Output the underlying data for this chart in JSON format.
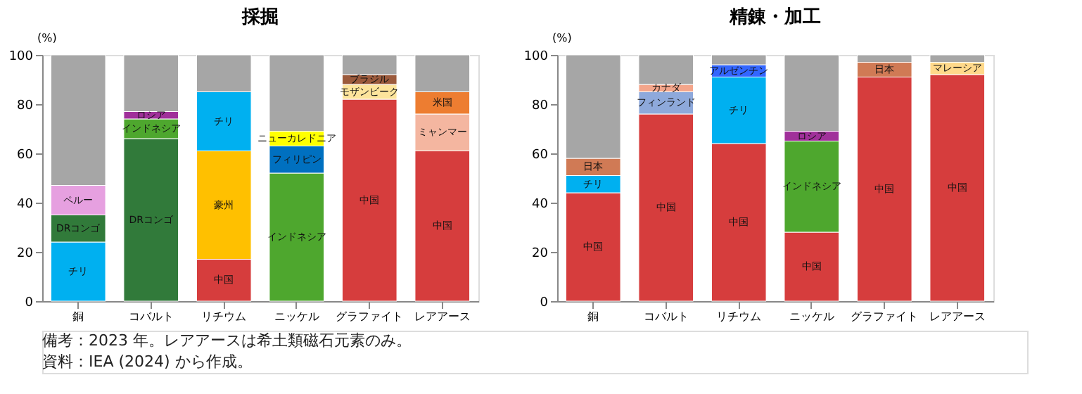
{
  "chart_data": [
    {
      "type": "bar",
      "stacked": true,
      "title": "採掘",
      "ylabel": "(%)",
      "categories": [
        "銅",
        "コバルト",
        "リチウム",
        "ニッケル",
        "グラファイト",
        "レアアース"
      ],
      "ylim": [
        0,
        100
      ],
      "yticks": [
        0,
        20,
        40,
        60,
        80,
        100
      ],
      "grid": false,
      "legend": false,
      "series": [
        {
          "name": "中国",
          "color": "#d63d3d",
          "values": [
            null,
            null,
            17,
            null,
            82,
            61
          ]
        },
        {
          "name": "豪州",
          "color": "#ffc000",
          "values": [
            null,
            null,
            44,
            null,
            null,
            null
          ]
        },
        {
          "name": "チリ",
          "color": "#00b0f0",
          "values": [
            24,
            null,
            24,
            null,
            null,
            null
          ]
        },
        {
          "name": "DRコンゴ",
          "color": "#317a3a",
          "values": [
            11,
            66,
            null,
            null,
            null,
            null
          ]
        },
        {
          "name": "ペルー",
          "color": "#e6a0e0",
          "values": [
            12,
            null,
            null,
            null,
            null,
            null
          ]
        },
        {
          "name": "インドネシア",
          "color": "#4ea72e",
          "values": [
            null,
            8,
            null,
            52,
            null,
            null
          ]
        },
        {
          "name": "ロシア",
          "color": "#a0309a",
          "values": [
            null,
            3,
            null,
            null,
            null,
            null
          ]
        },
        {
          "name": "フィリピン",
          "color": "#0070c0",
          "values": [
            null,
            null,
            null,
            11,
            null,
            null
          ]
        },
        {
          "name": "ニューカレドニア",
          "color": "#ffff00",
          "values": [
            null,
            null,
            null,
            6,
            null,
            null
          ]
        },
        {
          "name": "モザンビーク",
          "color": "#fde49c",
          "values": [
            null,
            null,
            null,
            null,
            6,
            null
          ]
        },
        {
          "name": "ブラジル",
          "color": "#9b5a3c",
          "values": [
            null,
            null,
            null,
            null,
            4,
            null
          ]
        },
        {
          "name": "ミャンマー",
          "color": "#f4b6a0",
          "values": [
            null,
            null,
            null,
            null,
            null,
            15
          ]
        },
        {
          "name": "米国",
          "color": "#ed7d31",
          "values": [
            null,
            null,
            null,
            null,
            null,
            9
          ]
        },
        {
          "color": "#a6a6a6",
          "values": [
            53,
            23,
            15,
            31,
            8,
            15
          ]
        }
      ],
      "annotations": [
        "備考：2023 年。レアアースは希土類磁石元素のみ。",
        "資料：IEA (2024) から作成。"
      ]
    },
    {
      "type": "bar",
      "stacked": true,
      "title": "精錬・加工",
      "ylabel": "(%)",
      "categories": [
        "銅",
        "コバルト",
        "リチウム",
        "ニッケル",
        "グラファイト",
        "レアアース"
      ],
      "ylim": [
        0,
        100
      ],
      "yticks": [
        0,
        20,
        40,
        60,
        80,
        100
      ],
      "grid": false,
      "legend": false,
      "series": [
        {
          "name": "中国",
          "color": "#d63d3d",
          "values": [
            44,
            76,
            64,
            28,
            91,
            92
          ]
        },
        {
          "name": "チリ",
          "color": "#00b0f0",
          "values": [
            7,
            null,
            27,
            null,
            null,
            null
          ]
        },
        {
          "name": "インドネシア",
          "color": "#4ea72e",
          "values": [
            null,
            null,
            null,
            37,
            null,
            null
          ]
        },
        {
          "name": "ロシア",
          "color": "#a0309a",
          "values": [
            null,
            null,
            null,
            4,
            null,
            null
          ]
        },
        {
          "name": "フィンランド",
          "color": "#8ea9db",
          "values": [
            null,
            9,
            null,
            null,
            null,
            null
          ]
        },
        {
          "name": "カナダ",
          "color": "#f4a58a",
          "values": [
            null,
            3,
            null,
            null,
            null,
            null
          ]
        },
        {
          "name": "アルゼンチン",
          "color": "#3366ff",
          "values": [
            null,
            null,
            5,
            null,
            null,
            null
          ]
        },
        {
          "name": "日本",
          "color": "#d07a55",
          "values": [
            7,
            null,
            null,
            null,
            6,
            null
          ]
        },
        {
          "name": "マレーシア",
          "color": "#ffd98a",
          "values": [
            null,
            null,
            null,
            null,
            null,
            5
          ]
        },
        {
          "color": "#a6a6a6",
          "values": [
            42,
            12,
            4,
            31,
            3,
            3
          ]
        }
      ]
    }
  ]
}
